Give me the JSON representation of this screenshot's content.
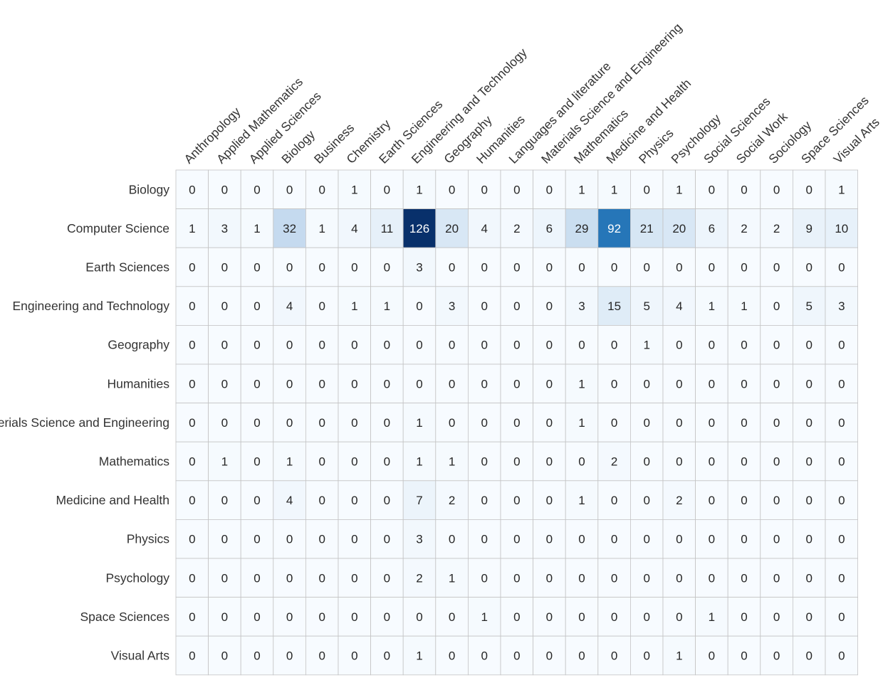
{
  "chart_data": {
    "type": "heatmap",
    "title": "",
    "xlabel": "",
    "ylabel": "",
    "colormap": "Blues",
    "color_low": "#f7fbff",
    "color_high": "#08306b",
    "value_range": [
      0,
      126
    ],
    "x_labels_position": "top",
    "x_labels_rotation_deg": -45,
    "columns": [
      "Anthropology",
      "Applied Mathematics",
      "Applied Sciences",
      "Biology",
      "Business",
      "Chemistry",
      "Earth Sciences",
      "Engineering and Technology",
      "Geography",
      "Humanities",
      "Languages and literature",
      "Materials Science and Engineering",
      "Mathematics",
      "Medicine and Health",
      "Physics",
      "Psychology",
      "Social Sciences",
      "Social Work",
      "Sociology",
      "Space Sciences",
      "Visual Arts"
    ],
    "rows": [
      "Biology",
      "Computer Science",
      "Earth Sciences",
      "Engineering and Technology",
      "Geography",
      "Humanities",
      "Materials Science and Engineering",
      "Mathematics",
      "Medicine and Health",
      "Physics",
      "Psychology",
      "Space Sciences",
      "Visual Arts"
    ],
    "values": [
      [
        0,
        0,
        0,
        0,
        0,
        1,
        0,
        1,
        0,
        0,
        0,
        0,
        1,
        1,
        0,
        1,
        0,
        0,
        0,
        0,
        1
      ],
      [
        1,
        3,
        1,
        32,
        1,
        4,
        11,
        126,
        20,
        4,
        2,
        6,
        29,
        92,
        21,
        20,
        6,
        2,
        2,
        9,
        10
      ],
      [
        0,
        0,
        0,
        0,
        0,
        0,
        0,
        3,
        0,
        0,
        0,
        0,
        0,
        0,
        0,
        0,
        0,
        0,
        0,
        0,
        0
      ],
      [
        0,
        0,
        0,
        4,
        0,
        1,
        1,
        0,
        3,
        0,
        0,
        0,
        3,
        15,
        5,
        4,
        1,
        1,
        0,
        5,
        3
      ],
      [
        0,
        0,
        0,
        0,
        0,
        0,
        0,
        0,
        0,
        0,
        0,
        0,
        0,
        0,
        1,
        0,
        0,
        0,
        0,
        0,
        0
      ],
      [
        0,
        0,
        0,
        0,
        0,
        0,
        0,
        0,
        0,
        0,
        0,
        0,
        1,
        0,
        0,
        0,
        0,
        0,
        0,
        0,
        0
      ],
      [
        0,
        0,
        0,
        0,
        0,
        0,
        0,
        1,
        0,
        0,
        0,
        0,
        1,
        0,
        0,
        0,
        0,
        0,
        0,
        0,
        0
      ],
      [
        0,
        1,
        0,
        1,
        0,
        0,
        0,
        1,
        1,
        0,
        0,
        0,
        0,
        2,
        0,
        0,
        0,
        0,
        0,
        0,
        0
      ],
      [
        0,
        0,
        0,
        4,
        0,
        0,
        0,
        7,
        2,
        0,
        0,
        0,
        1,
        0,
        0,
        2,
        0,
        0,
        0,
        0,
        0
      ],
      [
        0,
        0,
        0,
        0,
        0,
        0,
        0,
        3,
        0,
        0,
        0,
        0,
        0,
        0,
        0,
        0,
        0,
        0,
        0,
        0,
        0
      ],
      [
        0,
        0,
        0,
        0,
        0,
        0,
        0,
        2,
        1,
        0,
        0,
        0,
        0,
        0,
        0,
        0,
        0,
        0,
        0,
        0,
        0
      ],
      [
        0,
        0,
        0,
        0,
        0,
        0,
        0,
        0,
        0,
        1,
        0,
        0,
        0,
        0,
        0,
        0,
        1,
        0,
        0,
        0,
        0
      ],
      [
        0,
        0,
        0,
        0,
        0,
        0,
        0,
        1,
        0,
        0,
        0,
        0,
        0,
        0,
        0,
        1,
        0,
        0,
        0,
        0,
        0
      ]
    ]
  }
}
